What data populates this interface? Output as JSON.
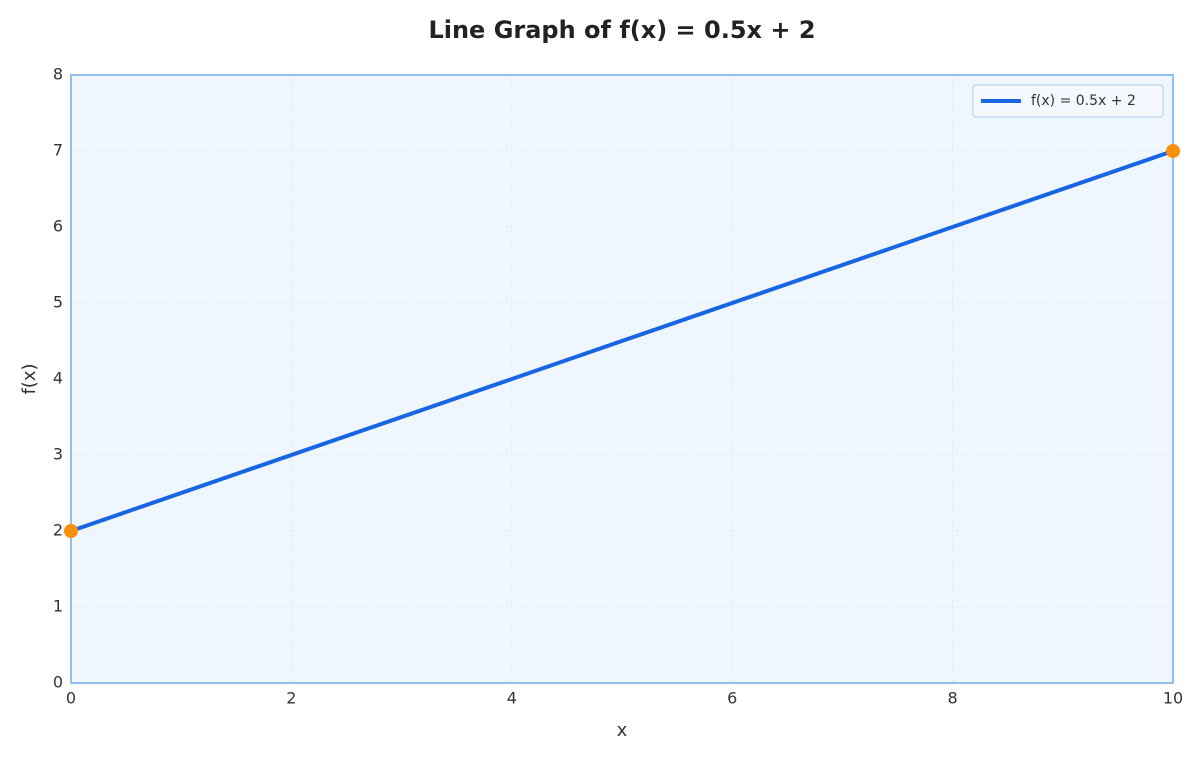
{
  "chart_data": {
    "type": "line",
    "title": "Line Graph of f(x) = 0.5x + 2",
    "x_label": "x",
    "y_label": "f(x)",
    "x": [
      0,
      10
    ],
    "series": [
      {
        "name": "f(x) = 0.5x + 2",
        "color": "#1766e3",
        "marker_color": "#f7900c",
        "values": [
          2,
          7
        ]
      }
    ],
    "xlim": [
      0,
      10
    ],
    "xticks": [
      0,
      2,
      4,
      6,
      8,
      10
    ],
    "ylim": [
      0,
      8
    ],
    "yticks": [
      0,
      1,
      2,
      3,
      4,
      5,
      6,
      7,
      8
    ],
    "grid": true,
    "legend_position": "upper right"
  }
}
